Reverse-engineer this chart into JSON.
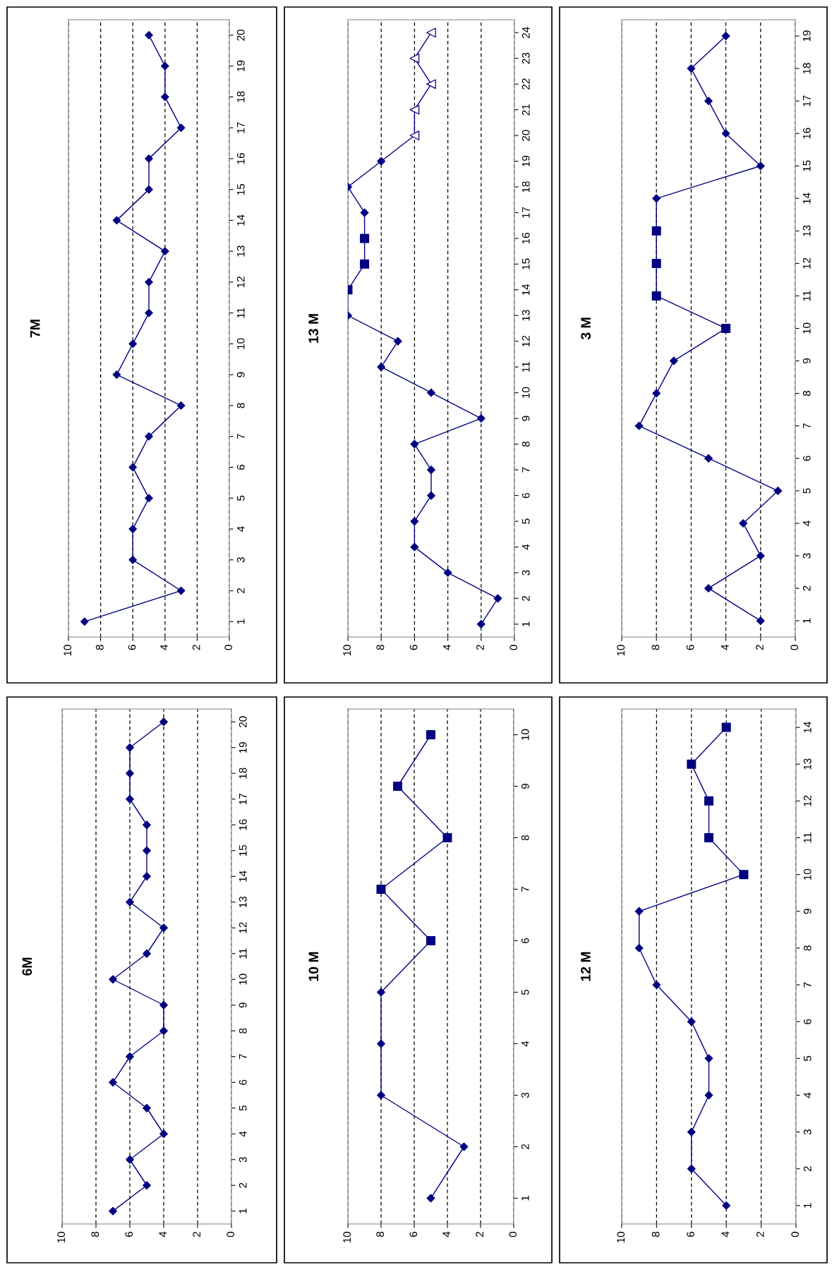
{
  "chart_data": [
    {
      "type": "line",
      "title": "7M",
      "orientation": "horizontal",
      "xlim": [
        10,
        0
      ],
      "xticks": [
        10,
        8,
        6,
        4,
        2,
        0
      ],
      "grid": "x",
      "categories": [
        "20",
        "19",
        "18",
        "17",
        "16",
        "15",
        "14",
        "13",
        "12",
        "11",
        "10",
        "9",
        "8",
        "7",
        "6",
        "5",
        "4",
        "3",
        "2",
        "1"
      ],
      "series": [
        {
          "color": "#000080",
          "values": [
            5,
            4,
            4,
            3,
            5,
            5,
            7,
            4,
            5,
            5,
            6,
            7,
            3,
            5,
            6,
            5,
            6,
            6,
            3,
            9
          ]
        },
        {
          "type": "scatter",
          "marker": "diamond",
          "color": "#000080",
          "values": [
            5,
            4,
            4,
            3,
            5,
            5,
            7,
            4,
            5,
            5,
            6,
            7,
            3,
            5,
            6,
            5,
            6,
            6,
            3,
            9
          ]
        }
      ]
    },
    {
      "type": "line",
      "title": "13 M",
      "orientation": "horizontal",
      "xlim": [
        10,
        0
      ],
      "xticks": [
        10,
        8,
        6,
        4,
        2,
        0
      ],
      "grid": "x",
      "categories": [
        "24",
        "23",
        "22",
        "21",
        "20",
        "19",
        "18",
        "17",
        "16",
        "15",
        "14",
        "13",
        "12",
        "11",
        "10",
        "9",
        "8",
        "7",
        "6",
        "5",
        "4",
        "3",
        "2",
        "1"
      ],
      "series": [
        {
          "color": "#000080",
          "values": [
            5,
            6,
            5,
            6,
            6,
            8,
            10,
            9,
            9,
            9,
            10,
            10,
            7,
            8,
            5,
            2,
            6,
            5,
            5,
            6,
            6,
            4,
            1,
            2
          ]
        },
        {
          "type": "scatter",
          "marker": "diamond",
          "color": "#000080",
          "values": [
            null,
            null,
            null,
            null,
            null,
            8,
            10,
            9,
            null,
            null,
            null,
            10,
            7,
            8,
            5,
            2,
            6,
            5,
            5,
            6,
            6,
            4,
            1,
            2
          ]
        },
        {
          "type": "scatter",
          "marker": "square",
          "color": "#000080",
          "values": [
            null,
            null,
            null,
            null,
            null,
            null,
            null,
            null,
            9,
            9,
            10,
            null,
            null,
            null,
            null,
            null,
            null,
            null,
            null,
            null,
            null,
            null,
            null,
            null
          ]
        },
        {
          "type": "scatter",
          "marker": "triangle",
          "color": "#000080",
          "values": [
            5,
            6,
            5,
            6,
            6,
            null,
            null,
            null,
            null,
            null,
            null,
            null,
            null,
            null,
            null,
            null,
            null,
            null,
            null,
            null,
            null,
            null,
            null,
            null
          ]
        }
      ]
    },
    {
      "type": "line",
      "title": "3 M",
      "orientation": "horizontal",
      "xlim": [
        10,
        0
      ],
      "xticks": [
        10,
        8,
        6,
        4,
        2,
        0
      ],
      "grid": "x",
      "categories": [
        "19",
        "18",
        "17",
        "16",
        "15",
        "14",
        "13",
        "12",
        "11",
        "10",
        "9",
        "8",
        "7",
        "6",
        "5",
        "4",
        "3",
        "2",
        "1"
      ],
      "series": [
        {
          "color": "#000080",
          "values": [
            4,
            6,
            5,
            4,
            2,
            8,
            8,
            8,
            8,
            4,
            7,
            8,
            9,
            5,
            1,
            3,
            2,
            5,
            2
          ]
        },
        {
          "type": "scatter",
          "marker": "diamond",
          "color": "#000080",
          "values": [
            4,
            6,
            5,
            4,
            2,
            8,
            null,
            null,
            null,
            null,
            7,
            8,
            9,
            5,
            1,
            3,
            2,
            5,
            2
          ]
        },
        {
          "type": "scatter",
          "marker": "square",
          "color": "#000080",
          "values": [
            null,
            null,
            null,
            null,
            null,
            null,
            8,
            8,
            8,
            4,
            null,
            null,
            null,
            null,
            null,
            null,
            null,
            null,
            null
          ]
        }
      ]
    },
    {
      "type": "line",
      "title": "6M",
      "orientation": "horizontal",
      "xlim": [
        10,
        0
      ],
      "xticks": [
        10,
        8,
        6,
        4,
        2,
        0
      ],
      "grid": "x",
      "categories": [
        "20",
        "19",
        "18",
        "17",
        "16",
        "15",
        "14",
        "13",
        "12",
        "11",
        "10",
        "9",
        "8",
        "7",
        "6",
        "5",
        "4",
        "3",
        "2",
        "1"
      ],
      "series": [
        {
          "color": "#000080",
          "values": [
            4,
            6,
            6,
            6,
            5,
            5,
            5,
            6,
            4,
            5,
            7,
            4,
            4,
            6,
            7,
            5,
            4,
            6,
            5,
            7
          ]
        },
        {
          "type": "scatter",
          "marker": "diamond",
          "color": "#000080",
          "values": [
            4,
            6,
            6,
            6,
            5,
            5,
            5,
            6,
            4,
            5,
            7,
            4,
            4,
            6,
            7,
            5,
            4,
            6,
            5,
            7
          ]
        }
      ]
    },
    {
      "type": "line",
      "title": "10 M",
      "orientation": "horizontal",
      "xlim": [
        10,
        0
      ],
      "xticks": [
        10,
        8,
        6,
        4,
        2,
        0
      ],
      "grid": "x",
      "categories": [
        "10",
        "9",
        "8",
        "7",
        "6",
        "5",
        "4",
        "3",
        "2",
        "1"
      ],
      "series": [
        {
          "color": "#000080",
          "values": [
            5,
            7,
            4,
            8,
            5,
            8,
            8,
            8,
            3,
            5
          ]
        },
        {
          "type": "scatter",
          "marker": "diamond",
          "color": "#000080",
          "values": [
            null,
            null,
            null,
            null,
            null,
            8,
            8,
            8,
            3,
            5
          ]
        },
        {
          "type": "scatter",
          "marker": "square",
          "color": "#000080",
          "values": [
            5,
            7,
            4,
            8,
            5,
            null,
            null,
            null,
            null,
            null
          ]
        }
      ]
    },
    {
      "type": "line",
      "title": "12 M",
      "orientation": "horizontal",
      "xlim": [
        10,
        0
      ],
      "xticks": [
        10,
        8,
        6,
        4,
        2,
        0
      ],
      "grid": "x",
      "categories": [
        "14",
        "13",
        "12",
        "11",
        "10",
        "9",
        "8",
        "7",
        "6",
        "5",
        "4",
        "3",
        "2",
        "1"
      ],
      "series": [
        {
          "color": "#000080",
          "values": [
            4,
            6,
            5,
            5,
            3,
            9,
            9,
            8,
            6,
            5,
            5,
            6,
            6,
            4
          ]
        },
        {
          "type": "scatter",
          "marker": "diamond",
          "color": "#000080",
          "values": [
            null,
            null,
            null,
            null,
            null,
            9,
            9,
            8,
            6,
            5,
            5,
            6,
            6,
            4
          ]
        },
        {
          "type": "scatter",
          "marker": "square",
          "color": "#000080",
          "values": [
            4,
            6,
            5,
            5,
            3,
            null,
            null,
            null,
            null,
            null,
            null,
            null,
            null,
            null
          ]
        }
      ]
    }
  ]
}
